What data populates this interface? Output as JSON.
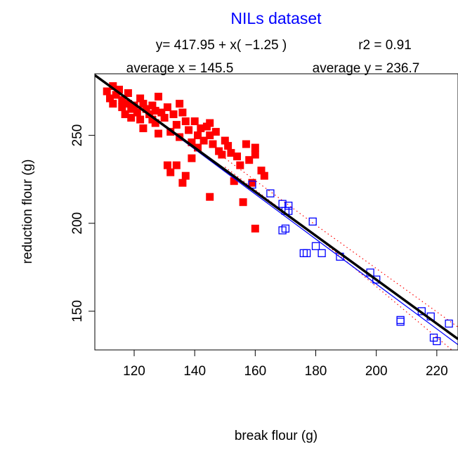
{
  "chart_data": {
    "type": "scatter",
    "title": "NILs dataset",
    "equation_text": "y= 417.95 + x( −1.25 )",
    "r2_text": "r2 = 0.91",
    "avg_x_text": "average x = 145.5",
    "avg_y_text": "average y = 236.7",
    "xlabel": "break flour (g)",
    "ylabel": "reduction flour (g)",
    "xlim": [
      107,
      227
    ],
    "ylim": [
      128,
      285
    ],
    "xticks": [
      120,
      140,
      160,
      180,
      200,
      220
    ],
    "yticks": [
      150,
      200,
      250
    ],
    "grid": false,
    "colors": {
      "title": "#0000ff",
      "filled": "#ff0000",
      "open": "#0000ff",
      "fit_line": "#000000",
      "group_line": "#0000ff",
      "conf_band": "#ff0000"
    },
    "series": [
      {
        "marker": "filled-square",
        "points": [
          [
            111,
            275
          ],
          [
            112,
            271
          ],
          [
            113,
            278
          ],
          [
            113,
            268
          ],
          [
            114,
            273
          ],
          [
            115,
            276
          ],
          [
            116,
            270
          ],
          [
            116,
            266
          ],
          [
            117,
            262
          ],
          [
            118,
            274
          ],
          [
            118,
            268
          ],
          [
            119,
            265
          ],
          [
            119,
            260
          ],
          [
            120,
            267
          ],
          [
            121,
            263
          ],
          [
            122,
            259
          ],
          [
            122,
            271
          ],
          [
            123,
            268
          ],
          [
            123,
            254
          ],
          [
            124,
            265
          ],
          [
            125,
            262
          ],
          [
            126,
            259
          ],
          [
            126,
            267
          ],
          [
            127,
            264
          ],
          [
            127,
            257
          ],
          [
            128,
            272
          ],
          [
            128,
            251
          ],
          [
            129,
            263
          ],
          [
            130,
            260
          ],
          [
            131,
            266
          ],
          [
            131,
            233
          ],
          [
            132,
            252
          ],
          [
            132,
            229
          ],
          [
            133,
            262
          ],
          [
            134,
            233
          ],
          [
            134,
            256
          ],
          [
            135,
            268
          ],
          [
            135,
            249
          ],
          [
            136,
            263
          ],
          [
            136,
            223
          ],
          [
            137,
            258
          ],
          [
            137,
            227
          ],
          [
            138,
            253
          ],
          [
            139,
            237
          ],
          [
            139,
            246
          ],
          [
            140,
            258
          ],
          [
            141,
            250
          ],
          [
            141,
            243
          ],
          [
            142,
            254
          ],
          [
            143,
            247
          ],
          [
            144,
            255
          ],
          [
            145,
            250
          ],
          [
            145,
            257
          ],
          [
            145,
            215
          ],
          [
            146,
            245
          ],
          [
            147,
            252
          ],
          [
            148,
            241
          ],
          [
            149,
            239
          ],
          [
            150,
            247
          ],
          [
            151,
            244
          ],
          [
            152,
            240
          ],
          [
            153,
            224
          ],
          [
            154,
            238
          ],
          [
            155,
            233
          ],
          [
            156,
            212
          ],
          [
            157,
            245
          ],
          [
            158,
            236
          ],
          [
            159,
            223
          ],
          [
            160,
            243
          ],
          [
            160,
            239
          ],
          [
            160,
            197
          ],
          [
            162,
            230
          ],
          [
            163,
            227
          ]
        ]
      },
      {
        "marker": "open-square",
        "points": [
          [
            159,
            222
          ],
          [
            165,
            217
          ],
          [
            169,
            211
          ],
          [
            169,
            196
          ],
          [
            170,
            207
          ],
          [
            170,
            197
          ],
          [
            171,
            210
          ],
          [
            171,
            207
          ],
          [
            176,
            183
          ],
          [
            177,
            183
          ],
          [
            179,
            201
          ],
          [
            180,
            187
          ],
          [
            182,
            183
          ],
          [
            188,
            181
          ],
          [
            198,
            172
          ],
          [
            200,
            168
          ],
          [
            208,
            145
          ],
          [
            208,
            144
          ],
          [
            215,
            150
          ],
          [
            218,
            147
          ],
          [
            219,
            135
          ],
          [
            220,
            133
          ],
          [
            224,
            143
          ]
        ]
      }
    ],
    "fit_line": {
      "intercept": 417.95,
      "slope": -1.25
    },
    "group_fit_line": {
      "points": [
        [
          108,
          283
        ],
        [
          227,
          131
        ]
      ]
    },
    "conf_band_upper": {
      "points": [
        [
          150,
          237
        ],
        [
          180,
          199
        ],
        [
          227,
          141
        ]
      ]
    },
    "conf_band_lower": {
      "points": [
        [
          150,
          232
        ],
        [
          180,
          193
        ],
        [
          227,
          125
        ]
      ]
    }
  }
}
